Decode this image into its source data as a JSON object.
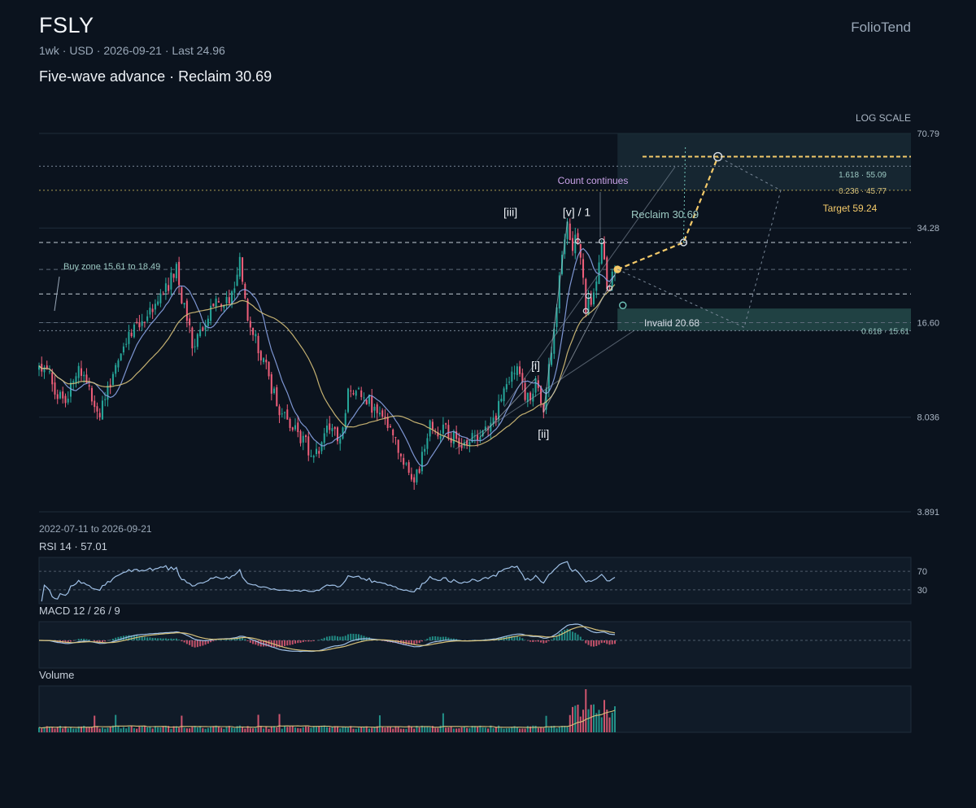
{
  "header": {
    "ticker": "FSLY",
    "brand": "FolioTend",
    "subtitle": "1wk · USD · 2026-09-21 · Last 24.96",
    "headline": "Five-wave advance · Reclaim 30.69",
    "scale_label": "LOG SCALE",
    "date_range": "2022-07-11 to 2026-09-21"
  },
  "colors": {
    "background": "#0b131e",
    "up": "#26a69a",
    "down": "#ef5f7a",
    "ma_fast": "#8aa4e6",
    "ma_slow": "#d8c27a",
    "target": "#f3c969",
    "zone": "#3f8f86",
    "accent_label": "#c9a2e8"
  },
  "chart_data": [
    {
      "type": "candlestick",
      "role": "price",
      "scale": "log",
      "y_ticks": [
        "70.79",
        "34.28",
        "16.60",
        "8.036",
        "3.891"
      ],
      "y_tick_values": [
        70.79,
        34.28,
        16.6,
        8.036,
        3.891
      ],
      "ylim": [
        3.891,
        70.79
      ],
      "x_range": [
        "2022-07-11",
        "2026-09-21"
      ],
      "last": 24.96,
      "anchors": [
        [
          "2022-07-11",
          12.5
        ],
        [
          "2022-09-12",
          9.0
        ],
        [
          "2022-10-24",
          11.8
        ],
        [
          "2022-12-19",
          8.2
        ],
        [
          "2023-02-13",
          13.5
        ],
        [
          "2023-04-17",
          17.0
        ],
        [
          "2023-05-29",
          20.6
        ],
        [
          "2023-07-10",
          24.5
        ],
        [
          "2023-08-21",
          14.2
        ],
        [
          "2023-10-16",
          18.5
        ],
        [
          "2023-11-27",
          20.0
        ],
        [
          "2023-12-25",
          26.0
        ],
        [
          "2024-01-15",
          17.5
        ],
        [
          "2024-02-19",
          13.0
        ],
        [
          "2024-04-15",
          8.0
        ],
        [
          "2024-05-27",
          7.2
        ],
        [
          "2024-07-08",
          6.0
        ],
        [
          "2024-08-19",
          7.5
        ],
        [
          "2024-09-16",
          7.0
        ],
        [
          "2024-10-14",
          10.4
        ],
        [
          "2024-11-25",
          9.2
        ],
        [
          "2024-12-23",
          8.3
        ],
        [
          "2025-02-03",
          6.8
        ],
        [
          "2025-03-31",
          4.8
        ],
        [
          "2025-05-12",
          7.5
        ],
        [
          "2025-06-23",
          7.2
        ],
        [
          "2025-08-04",
          6.6
        ],
        [
          "2025-09-22",
          7.2
        ],
        [
          "2025-11-03",
          8.3
        ],
        [
          "2025-12-22",
          11.8
        ],
        [
          "2026-01-26",
          9.3
        ],
        [
          "2026-02-16",
          10.5
        ],
        [
          "2026-03-09",
          8.6
        ],
        [
          "2026-03-30",
          14.0
        ],
        [
          "2026-04-20",
          23.5
        ],
        [
          "2026-05-11",
          34.0
        ],
        [
          "2026-05-25",
          29.0
        ],
        [
          "2026-06-08",
          32.5
        ],
        [
          "2026-06-29",
          18.8
        ],
        [
          "2026-07-20",
          21.0
        ],
        [
          "2026-08-10",
          31.0
        ],
        [
          "2026-08-24",
          22.0
        ],
        [
          "2026-09-07",
          23.0
        ],
        [
          "2026-09-21",
          24.96
        ]
      ],
      "moving_averages": [
        {
          "period": 10,
          "color_key": "ma_fast"
        },
        {
          "period": 30,
          "color_key": "ma_slow"
        }
      ],
      "levels": [
        {
          "value": 59.24,
          "style": "target"
        },
        {
          "value": 55.09,
          "style": "fib-dotted"
        },
        {
          "value": 45.77,
          "style": "fib-dotted"
        },
        {
          "value": 30.69,
          "style": "dashed"
        },
        {
          "value": 24.96,
          "style": "dashed-faint"
        },
        {
          "value": 20.68,
          "style": "dashed"
        },
        {
          "value": 16.6,
          "style": "dashed-faint"
        },
        {
          "value": 15.61,
          "style": "fib-dotted"
        }
      ],
      "zones": [
        {
          "from": 45.77,
          "to": 70.79,
          "start": "2026-09-21"
        },
        {
          "from": 15.61,
          "to": 18.49,
          "start": "2026-09-21"
        }
      ],
      "labels": {
        "fib_1618": "1.618 · 55.09",
        "fib_0236": "0.236 · 45.77",
        "fib_0618": "0.618 · 15.61",
        "target": "Target 59.24",
        "reclaim": "Reclaim 30.69",
        "invalid": "Invalid 20.68",
        "buy_zone": "Buy zone 15.61 to 18.49",
        "count_continues": "Count continues"
      },
      "waves": [
        {
          "label": "[i]",
          "date": "2026-02-16",
          "price": 10.5
        },
        {
          "label": "[ii]",
          "date": "2026-03-09",
          "price": 8.6
        },
        {
          "label": "[iii]",
          "date": "2026-05-11",
          "price": 34.0
        },
        {
          "label": "[v] / 1",
          "date": "2026-05-25",
          "price": 34.0
        }
      ],
      "projection": [
        {
          "date": "2026-09-21",
          "price": 24.96
        },
        {
          "date": "2027-03-15",
          "price": 30.69
        },
        {
          "date": "2027-06-14",
          "price": 59.24
        }
      ]
    },
    {
      "type": "line",
      "role": "rsi",
      "title": "RSI 14 · 57.01",
      "y_ticks": [
        "70",
        "30"
      ],
      "y_tick_values": [
        70,
        30
      ],
      "ylim": [
        0,
        100
      ],
      "last": 57.01
    },
    {
      "type": "line",
      "role": "macd",
      "title": "MACD 12 / 26 / 9",
      "params": [
        12,
        26,
        9
      ]
    },
    {
      "type": "bar",
      "role": "volume",
      "title": "Volume"
    }
  ]
}
